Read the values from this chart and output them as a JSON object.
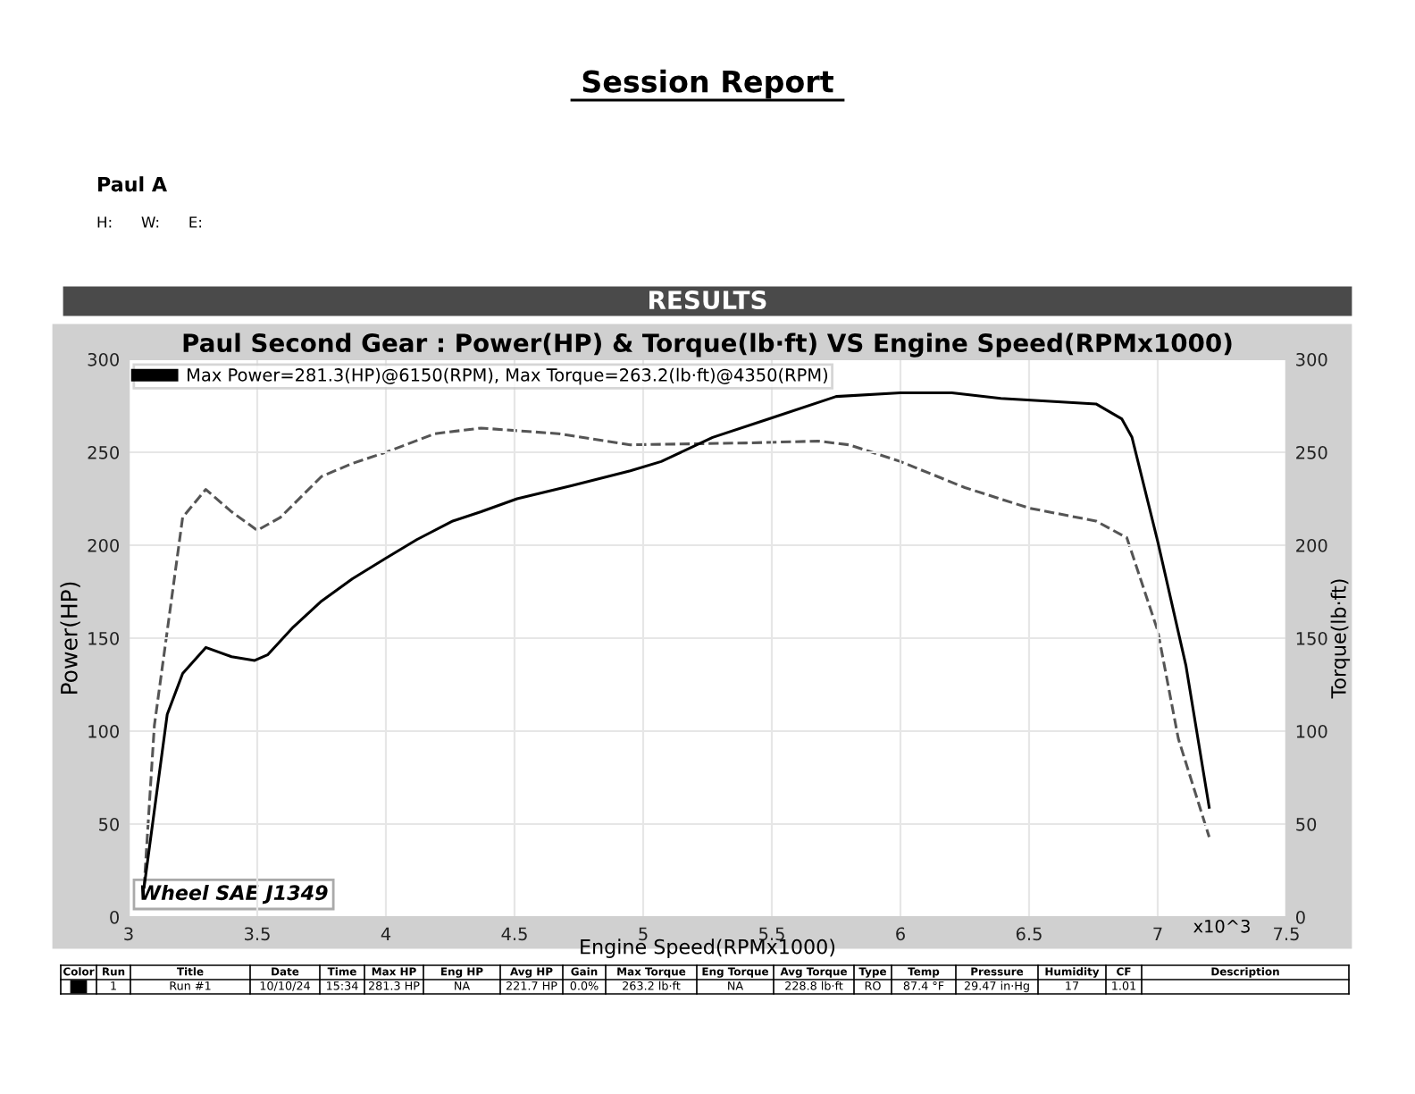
{
  "chart_data": {
    "type": "line",
    "title": "Paul Second Gear : Power(HP) & Torque(lb·ft) VS Engine Speed(RPMx1000)",
    "xlabel": "Engine Speed(RPMx1000)",
    "ylabel": "Power(HP)",
    "y2label": "Torque(lb·ft)",
    "xlim": [
      3,
      7.5
    ],
    "xticks": [
      3,
      3.5,
      4,
      4.5,
      5,
      5.5,
      6,
      6.5,
      7,
      7.5
    ],
    "ylim": [
      0,
      300
    ],
    "yticks": [
      0,
      50,
      100,
      150,
      200,
      250,
      300
    ],
    "y2lim": [
      0,
      300
    ],
    "y2ticks": [
      0,
      50,
      100,
      150,
      200,
      250,
      300
    ],
    "grid": true,
    "legend": "top left",
    "series": [
      {
        "name": "Max Power=281.3(HP)@6150(RPM), Max Torque=263.2(lb·ft)@4350(RPM)",
        "color": "#000000",
        "line_style": "solid",
        "x": [
          3.06,
          3.15,
          3.21,
          3.3,
          3.4,
          3.49,
          3.54,
          3.64,
          3.75,
          3.87,
          4.0,
          4.12,
          4.26,
          4.37,
          4.51,
          4.72,
          4.95,
          5.07,
          5.27,
          5.49,
          5.75,
          6.0,
          6.2,
          6.39,
          6.76,
          6.86,
          6.9,
          7.0,
          7.11,
          7.2
        ],
        "values": [
          16,
          109,
          131,
          145,
          140,
          138,
          141,
          156,
          170,
          182,
          193,
          203,
          213,
          218,
          225,
          232,
          240,
          245,
          258,
          268,
          280,
          282,
          282,
          279,
          276,
          268,
          258,
          202,
          135,
          59
        ]
      },
      {
        "color": "#555555",
        "line_style": "dashed",
        "axis": "y2",
        "x": [
          3.06,
          3.1,
          3.21,
          3.3,
          3.4,
          3.5,
          3.59,
          3.75,
          3.87,
          4.0,
          4.19,
          4.37,
          4.67,
          4.95,
          5.4,
          5.68,
          5.8,
          6.0,
          6.25,
          6.5,
          6.76,
          6.88,
          7.0,
          7.08,
          7.2
        ],
        "values": [
          16,
          103,
          215,
          230,
          218,
          208,
          215,
          237,
          244,
          250,
          260,
          263,
          260,
          254,
          255,
          256,
          254,
          245,
          231,
          220,
          213,
          204,
          154,
          96,
          43
        ]
      }
    ],
    "annotations": [
      "Session Report",
      "Paul A",
      "H:      W:      E:",
      "RESULTS",
      "Wheel SAE J1349",
      "x10^3",
      "Color",
      "Run",
      "Title",
      "Date",
      "Time",
      "Max HP",
      "Eng HP",
      "Avg HP",
      "Gain",
      "Max Torque",
      "Eng Torque",
      "Avg Torque",
      "Type",
      "Temp",
      "Pressure",
      "Humidity",
      "CF",
      "Description",
      "1",
      "Run #1",
      "10/10/24",
      "15:34",
      "281.3 HP",
      "NA",
      "221.7 HP",
      "0.0%",
      "263.2 lb·ft",
      "NA",
      "228.8 lb·ft",
      "RO",
      "87.4 °F",
      "29.47 in·Hg",
      "17",
      "1.01"
    ]
  }
}
